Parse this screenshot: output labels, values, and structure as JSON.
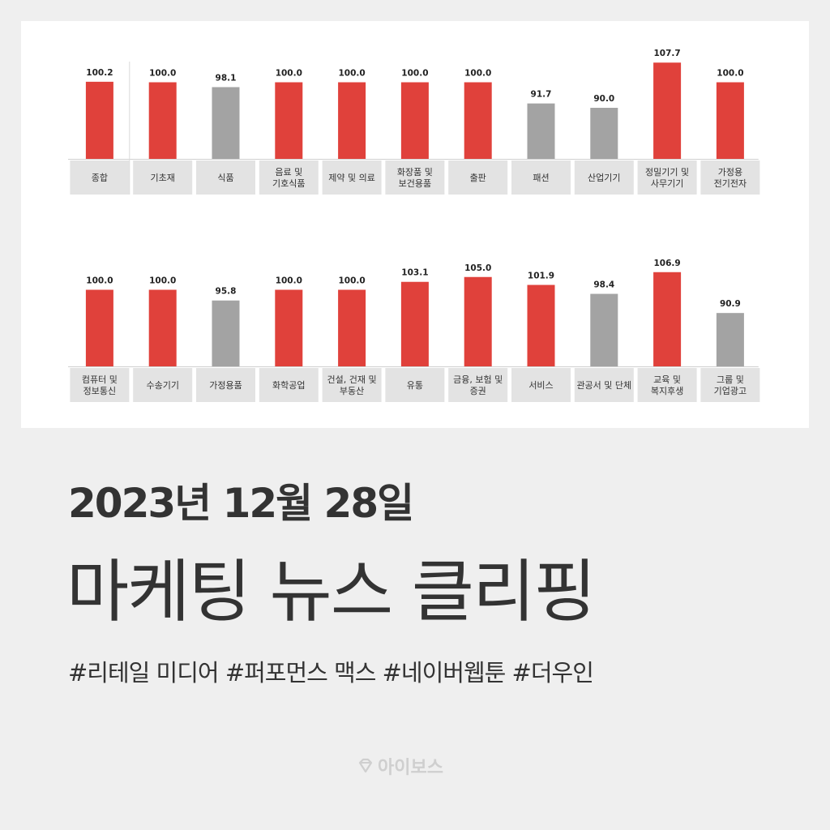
{
  "chart_data": {
    "type": "bar",
    "panels": [
      {
        "categories": [
          "종합",
          "기초재",
          "식품",
          "음료 및\n기호식품",
          "제약 및 의료",
          "화장품 및\n보건용품",
          "출판",
          "패션",
          "산업기기",
          "정밀기기 및\n사무기기",
          "가정용\n전기전자"
        ],
        "values": [
          100.2,
          100.0,
          98.1,
          100.0,
          100.0,
          100.0,
          100.0,
          91.7,
          90.0,
          107.7,
          100.0
        ],
        "value_labels": [
          "100.2",
          "100.0",
          "98.1",
          "100.0",
          "100.0",
          "100.0",
          "100.0",
          "91.7",
          "90.0",
          "107.7",
          "100.0"
        ],
        "highlight": [
          true,
          true,
          false,
          true,
          true,
          true,
          true,
          false,
          false,
          true,
          true
        ]
      },
      {
        "categories": [
          "컴퓨터 및\n정보통신",
          "수송기기",
          "가정용품",
          "화학공업",
          "건설, 건재 및\n부동산",
          "유통",
          "금융, 보험 및\n증권",
          "서비스",
          "관공서 및 단체",
          "교육 및\n복지후생",
          "그룹 및\n기업광고"
        ],
        "values": [
          100.0,
          100.0,
          95.8,
          100.0,
          100.0,
          103.1,
          105.0,
          101.9,
          98.4,
          106.9,
          90.9
        ],
        "value_labels": [
          "100.0",
          "100.0",
          "95.8",
          "100.0",
          "100.0",
          "103.1",
          "105.0",
          "101.9",
          "98.4",
          "106.9",
          "90.9"
        ],
        "highlight": [
          true,
          true,
          false,
          true,
          true,
          true,
          true,
          true,
          false,
          true,
          false
        ]
      }
    ],
    "colors": {
      "highlight": "#e0413b",
      "normal": "#a3a3a3",
      "label_bg": "#e3e3e3"
    }
  },
  "headline": {
    "date": "2023년 12월 28일",
    "title": "마케팅 뉴스 클리핑",
    "tags": "#리테일 미디어 #퍼포먼스 맥스 #네이버웹툰 #더우인"
  },
  "brand": {
    "name": "아이보스",
    "logo_icon": "diamond-logo-icon"
  }
}
